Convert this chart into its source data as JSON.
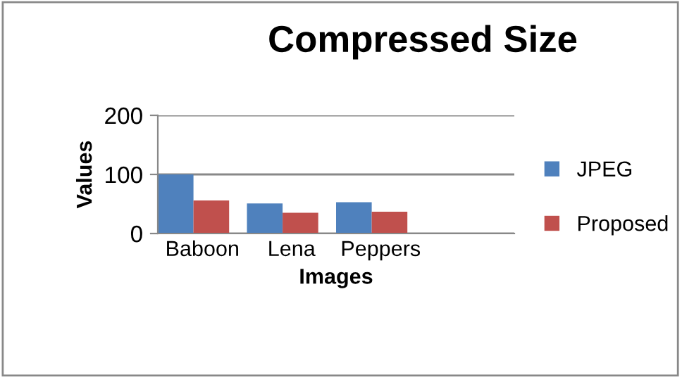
{
  "chart_data": {
    "type": "bar",
    "title": "Compressed Size",
    "xlabel": "Images",
    "ylabel": "Values",
    "categories": [
      "Baboon",
      "Lena",
      "Peppers",
      null
    ],
    "series": [
      {
        "name": "JPEG",
        "color": "#4f81bd",
        "values": [
          100,
          51,
          53,
          null
        ]
      },
      {
        "name": "Proposed",
        "color": "#c0504d",
        "values": [
          56,
          35,
          37,
          null
        ]
      }
    ],
    "ylim": [
      0,
      200
    ],
    "yticks": [
      0,
      100,
      200
    ],
    "grid": "y",
    "legend": "right"
  }
}
